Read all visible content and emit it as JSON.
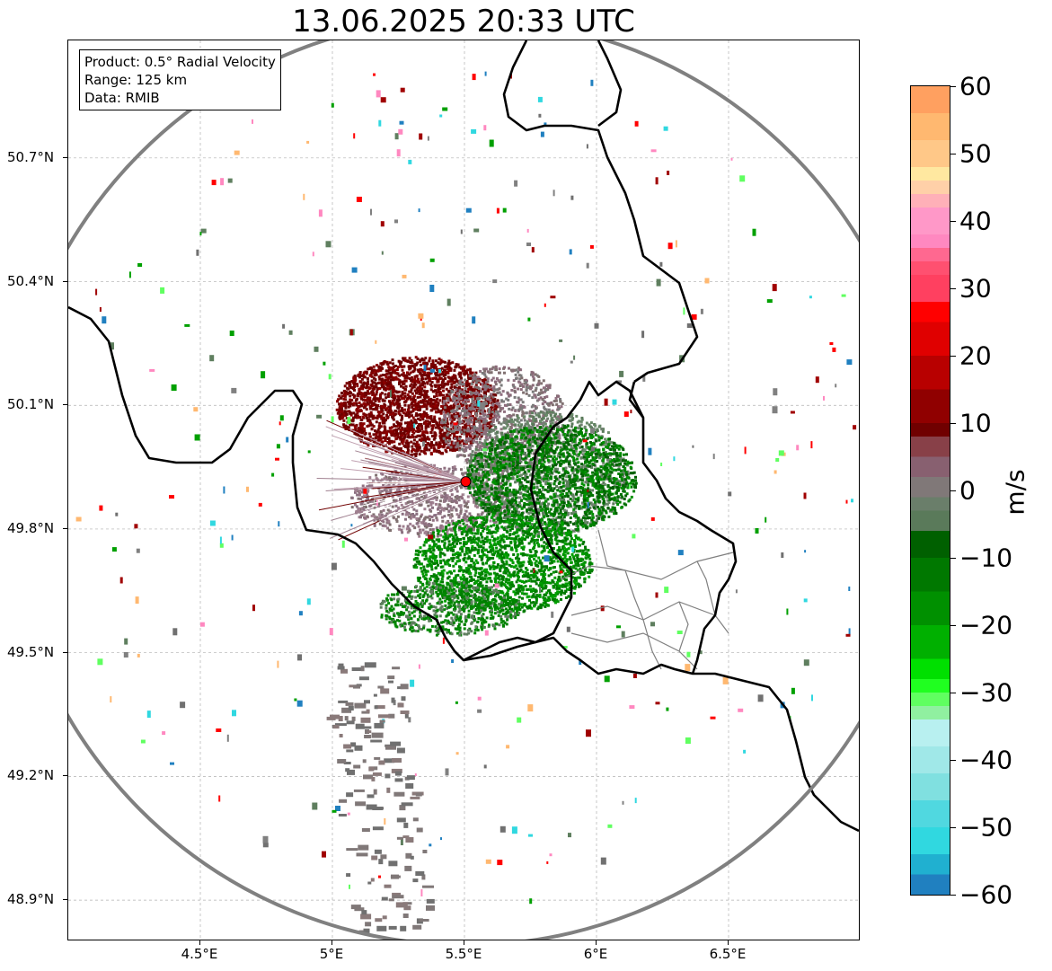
{
  "title": "13.06.2025 20:33 UTC",
  "info_box": {
    "product": "Product: 0.5° Radial Velocity",
    "range": "Range: 125 km",
    "source": "Data: RMIB"
  },
  "map": {
    "lon_range": [
      4.0,
      7.0
    ],
    "lat_range": [
      48.8,
      50.985
    ],
    "radar_site": {
      "lon": 5.505,
      "lat": 49.915
    },
    "range_ring_km": 125,
    "lat_ticks": [
      {
        "value": 50.7,
        "label": "50.7°N"
      },
      {
        "value": 50.4,
        "label": "50.4°N"
      },
      {
        "value": 50.1,
        "label": "50.1°N"
      },
      {
        "value": 49.8,
        "label": "49.8°N"
      },
      {
        "value": 49.5,
        "label": "49.5°N"
      },
      {
        "value": 49.2,
        "label": "49.2°N"
      },
      {
        "value": 48.9,
        "label": "48.9°N"
      }
    ],
    "lon_ticks": [
      {
        "value": 4.5,
        "label": "4.5°E"
      },
      {
        "value": 5.0,
        "label": "5°E"
      },
      {
        "value": 5.5,
        "label": "5.5°E"
      },
      {
        "value": 6.0,
        "label": "6°E"
      },
      {
        "value": 6.5,
        "label": "6.5°E"
      }
    ],
    "colors": {
      "ring": "#808080",
      "border": "#000000",
      "admin": "#808080",
      "grid": "#b0b0b0",
      "site_marker": "#ff0000",
      "receding_strong": "#7a0000",
      "approaching_strong": "#008000",
      "near_zero_gray": "#807070",
      "near_zero_green": "#5f7f5f"
    }
  },
  "colorbar": {
    "unit": "m/s",
    "min": -60,
    "max": 60,
    "ticks": [
      {
        "value": 60,
        "label": "60"
      },
      {
        "value": 50,
        "label": "50"
      },
      {
        "value": 40,
        "label": "40"
      },
      {
        "value": 30,
        "label": "30"
      },
      {
        "value": 20,
        "label": "20"
      },
      {
        "value": 10,
        "label": "10"
      },
      {
        "value": 0,
        "label": "0"
      },
      {
        "value": -10,
        "label": "−10"
      },
      {
        "value": -20,
        "label": "−20"
      },
      {
        "value": -30,
        "label": "−30"
      },
      {
        "value": -40,
        "label": "−40"
      },
      {
        "value": -50,
        "label": "−50"
      },
      {
        "value": -60,
        "label": "−60"
      }
    ],
    "bands": [
      {
        "from": 56,
        "to": 60,
        "color": "#ffa060"
      },
      {
        "from": 52,
        "to": 56,
        "color": "#ffb870"
      },
      {
        "from": 48,
        "to": 52,
        "color": "#ffc888"
      },
      {
        "from": 46,
        "to": 48,
        "color": "#ffe8a0"
      },
      {
        "from": 44,
        "to": 46,
        "color": "#ffd0a8"
      },
      {
        "from": 42,
        "to": 44,
        "color": "#ffb0b8"
      },
      {
        "from": 38,
        "to": 42,
        "color": "#ff98c8"
      },
      {
        "from": 36,
        "to": 38,
        "color": "#ff88c0"
      },
      {
        "from": 34,
        "to": 36,
        "color": "#ff6890"
      },
      {
        "from": 32,
        "to": 34,
        "color": "#ff5070"
      },
      {
        "from": 28,
        "to": 32,
        "color": "#ff4060"
      },
      {
        "from": 25,
        "to": 28,
        "color": "#ff0000"
      },
      {
        "from": 20,
        "to": 25,
        "color": "#e00000"
      },
      {
        "from": 15,
        "to": 20,
        "color": "#b80000"
      },
      {
        "from": 10,
        "to": 15,
        "color": "#900000"
      },
      {
        "from": 8,
        "to": 10,
        "color": "#700000"
      },
      {
        "from": 5,
        "to": 8,
        "color": "#884048"
      },
      {
        "from": 2,
        "to": 5,
        "color": "#886070"
      },
      {
        "from": -1,
        "to": 2,
        "color": "#807878"
      },
      {
        "from": -3,
        "to": -1,
        "color": "#6a7e6a"
      },
      {
        "from": -6,
        "to": -3,
        "color": "#5a7a5a"
      },
      {
        "from": -10,
        "to": -6,
        "color": "#006000"
      },
      {
        "from": -15,
        "to": -10,
        "color": "#007800"
      },
      {
        "from": -20,
        "to": -15,
        "color": "#009000"
      },
      {
        "from": -25,
        "to": -20,
        "color": "#00b000"
      },
      {
        "from": -28,
        "to": -25,
        "color": "#00e000"
      },
      {
        "from": -30,
        "to": -28,
        "color": "#20ff20"
      },
      {
        "from": -32,
        "to": -30,
        "color": "#60ff60"
      },
      {
        "from": -34,
        "to": -32,
        "color": "#90f0a0"
      },
      {
        "from": -38,
        "to": -34,
        "color": "#b8f0f0"
      },
      {
        "from": -42,
        "to": -38,
        "color": "#a0e8e8"
      },
      {
        "from": -46,
        "to": -42,
        "color": "#80e0e0"
      },
      {
        "from": -50,
        "to": -46,
        "color": "#50d8e0"
      },
      {
        "from": -54,
        "to": -50,
        "color": "#30d8e0"
      },
      {
        "from": -57,
        "to": -54,
        "color": "#20b0d0"
      },
      {
        "from": -60,
        "to": -57,
        "color": "#2080c0"
      }
    ]
  }
}
